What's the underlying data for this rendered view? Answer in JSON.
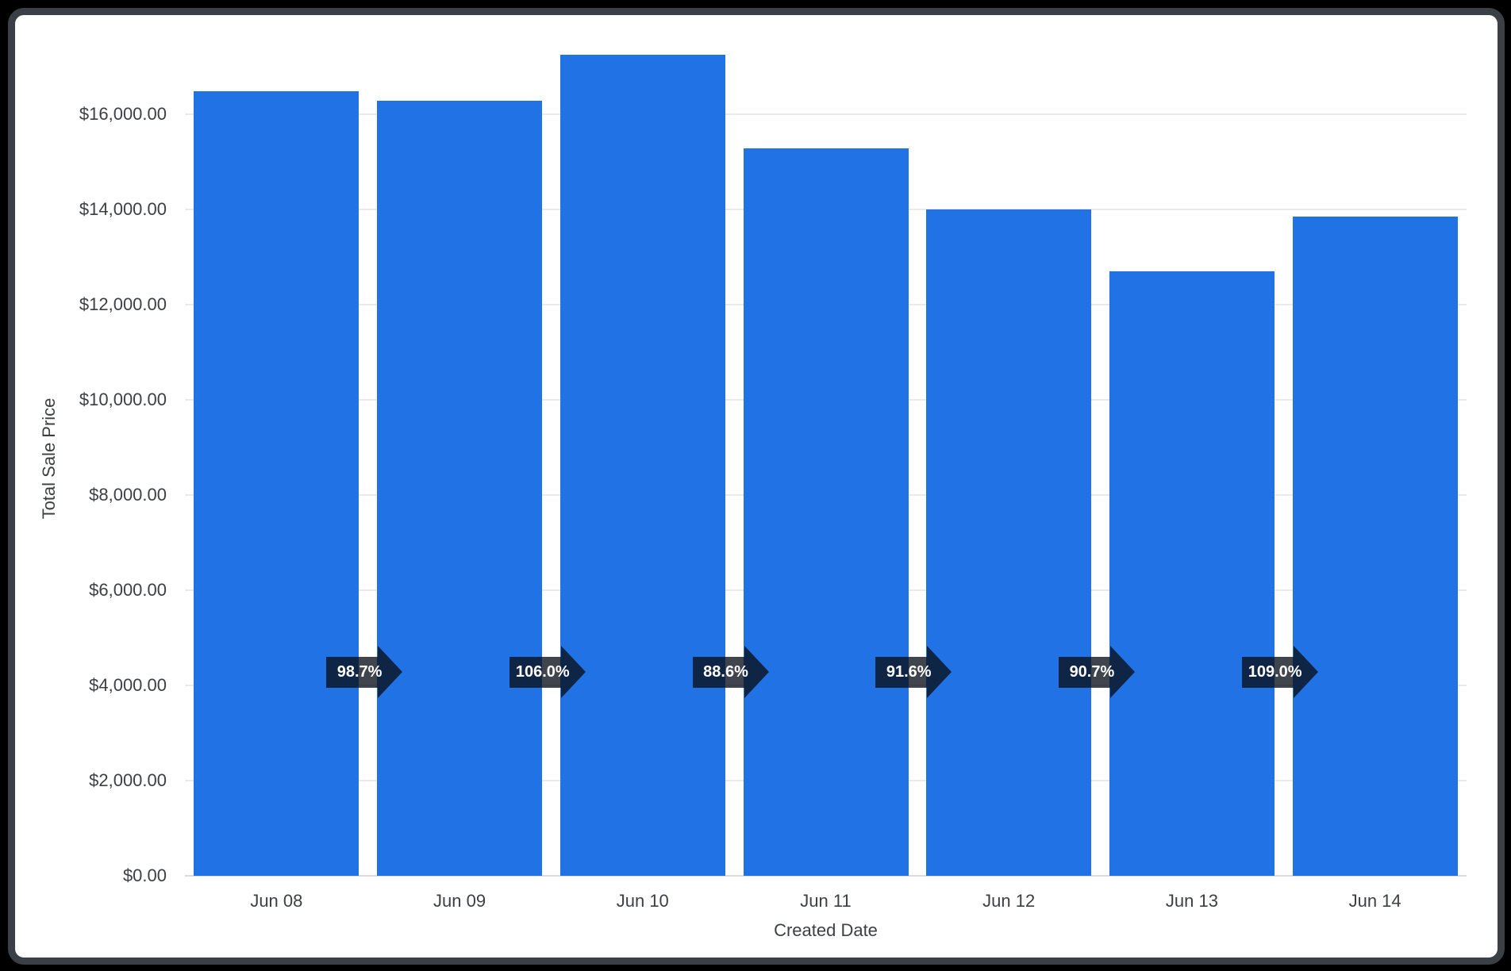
{
  "theme": {
    "background": "#000000",
    "card_background": "#ffffff",
    "card_border": "#3a4046",
    "grid_color": "#e8eaed",
    "axis_line_color": "#d9dbdf",
    "text_color": "#3c4043",
    "bar_color": "#2173e5",
    "badge_color": "rgba(10,16,26,0.78)",
    "badge_text_color": "#ffffff"
  },
  "chart_data": {
    "type": "bar",
    "title": "",
    "xlabel": "Created Date",
    "ylabel": "Total Sale Price",
    "categories": [
      "Jun 08",
      "Jun 09",
      "Jun 10",
      "Jun 11",
      "Jun 12",
      "Jun 13",
      "Jun 14"
    ],
    "values": [
      16490,
      16276,
      17253,
      15286,
      14002,
      12700,
      13843
    ],
    "value_format": "currency-usd-2dp",
    "ylim": [
      0,
      17400
    ],
    "grid": true,
    "legend": "none",
    "y_ticks": [
      {
        "value": 0,
        "label": "$0.00"
      },
      {
        "value": 2000,
        "label": "$2,000.00"
      },
      {
        "value": 4000,
        "label": "$4,000.00"
      },
      {
        "value": 6000,
        "label": "$6,000.00"
      },
      {
        "value": 8000,
        "label": "$8,000.00"
      },
      {
        "value": 10000,
        "label": "$10,000.00"
      },
      {
        "value": 12000,
        "label": "$12,000.00"
      },
      {
        "value": 14000,
        "label": "$14,000.00"
      },
      {
        "value": 16000,
        "label": "$16,000.00"
      }
    ],
    "growth_badges": {
      "shape": "right-arrow",
      "meaning": "period-over-period percent of previous bar",
      "labels": [
        "98.7%",
        "106.0%",
        "88.6%",
        "91.6%",
        "90.7%",
        "109.0%"
      ]
    }
  }
}
